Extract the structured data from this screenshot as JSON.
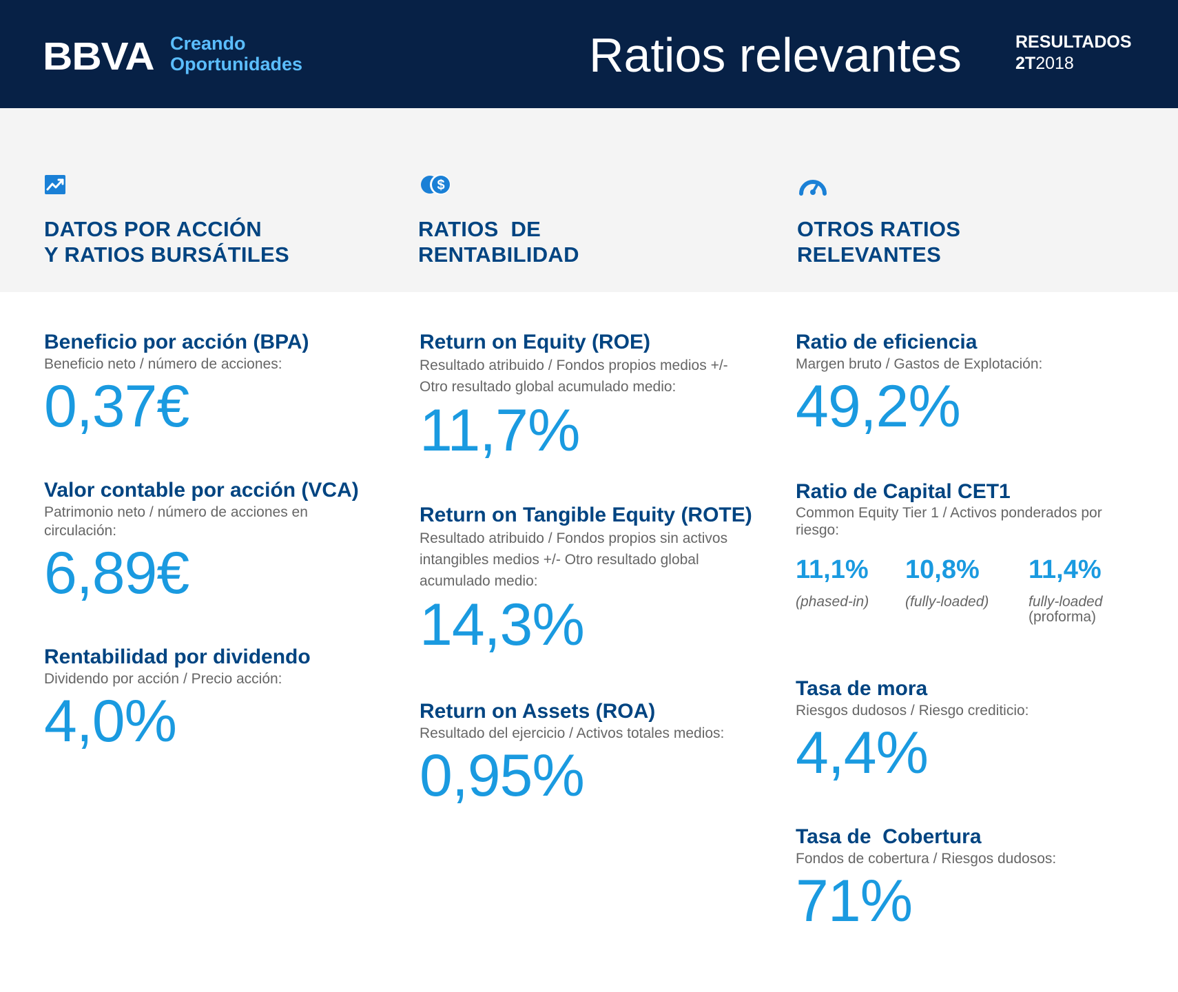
{
  "header": {
    "logo": "BBVA",
    "tagline_line1": "Creando",
    "tagline_line2": "Oportunidades",
    "title": "Ratios relevantes",
    "results_label": "RESULTADOS",
    "period_prefix": "2T",
    "period_year": "2018"
  },
  "sections": [
    {
      "icon": "trending-up-icon",
      "title_line1": "DATOS POR ACCIÓN",
      "title_line2": "Y RATIOS BURSÁTILES"
    },
    {
      "icon": "dollar-coin-icon",
      "title_line1": "RATIOS  DE",
      "title_line2": "RENTABILIDAD"
    },
    {
      "icon": "speedometer-icon",
      "title_line1": "OTROS RATIOS",
      "title_line2": "RELEVANTES"
    }
  ],
  "col1": {
    "bpa": {
      "title": "Beneficio por acción (BPA)",
      "desc": "Beneficio neto / número de acciones:",
      "value": "0,37€"
    },
    "vca": {
      "title": "Valor contable por acción (VCA)",
      "desc": "Patrimonio neto / número de acciones en circulación:",
      "value": "6,89€"
    },
    "rpd": {
      "title": "Rentabilidad por dividendo",
      "desc": "Dividendo por acción / Precio acción:",
      "value": "4,0%"
    }
  },
  "col2": {
    "roe": {
      "title": "Return on Equity (ROE)",
      "desc": "Resultado atribuido / Fondos propios medios +/- Otro resultado global acumulado medio:",
      "value": "11,7%"
    },
    "rote": {
      "title": "Return on Tangible Equity (ROTE)",
      "desc": "Resultado atribuido / Fondos propios sin activos intangibles medios +/- Otro resultado global acumulado medio:",
      "value": "14,3%"
    },
    "roa": {
      "title": "Return on Assets (ROA)",
      "desc": "Resultado del ejercicio / Activos totales medios:",
      "value": "0,95%"
    }
  },
  "col3": {
    "eficiencia": {
      "title": "Ratio de eficiencia",
      "desc": "Margen bruto / Gastos de Explotación:",
      "value": "49,2%"
    },
    "cet1": {
      "title": "Ratio de Capital CET1",
      "desc": "Common Equity Tier 1 / Activos ponderados por riesgo:",
      "items": [
        {
          "value": "11,1%",
          "label": "(phased-in)",
          "label2": ""
        },
        {
          "value": "10,8%",
          "label": "(fully-loaded)",
          "label2": ""
        },
        {
          "value": "11,4%",
          "label": "fully-loaded",
          "label2": "(proforma)"
        }
      ]
    },
    "mora": {
      "title": "Tasa de mora",
      "desc": "Riesgos dudosos / Riesgo crediticio:",
      "value": "4,4%"
    },
    "cobertura": {
      "title": "Tasa de  Cobertura",
      "desc": "Fondos de cobertura / Riesgos dudosos:",
      "value": "71%"
    }
  },
  "colors": {
    "navy": "#072146",
    "blue": "#004481",
    "accent": "#1a9ae0",
    "light_blue": "#5bbeff",
    "grey_band": "#f4f4f4"
  }
}
